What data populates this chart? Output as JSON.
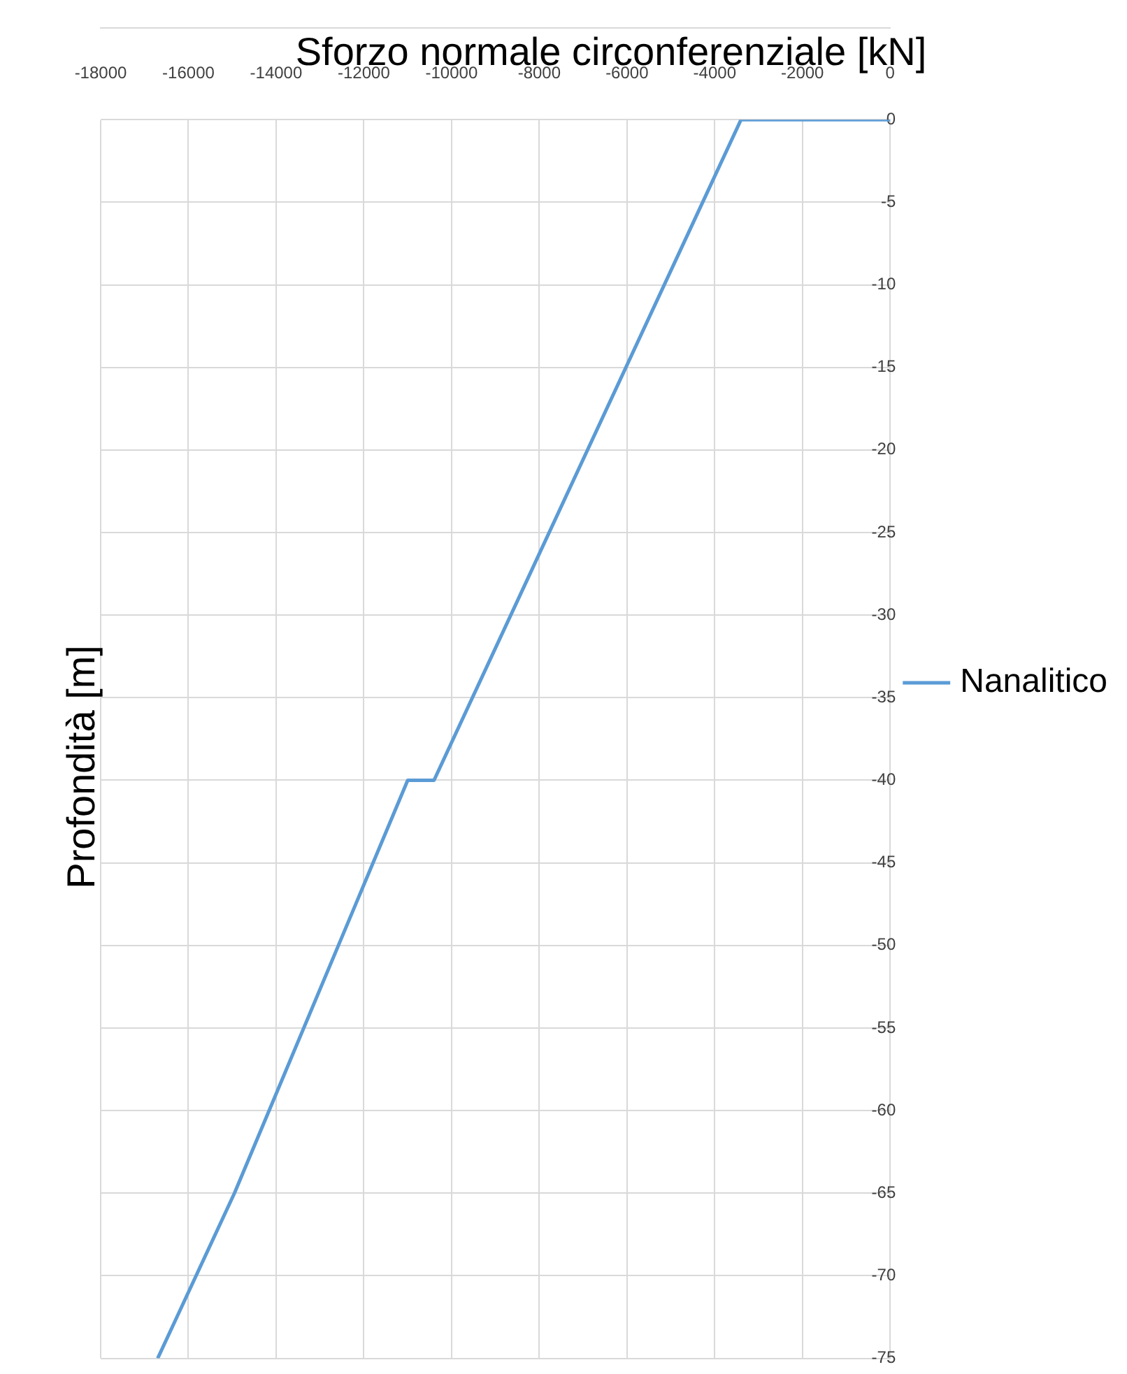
{
  "chart_data": {
    "type": "line",
    "title": "Sforzo normale circonferenziale [kN]",
    "ylabel": "Profondità [m]",
    "series": [
      {
        "name": "Nanalitico",
        "color": "#5b9bd5",
        "x": [
          0,
          -3400,
          -10400,
          -11000,
          -14950,
          -16700
        ],
        "values": [
          0,
          0,
          -40,
          -40,
          -65,
          -75
        ]
      }
    ],
    "xlim": [
      -18000,
      0
    ],
    "xticks": [
      -18000,
      -16000,
      -14000,
      -12000,
      -10000,
      -8000,
      -6000,
      -4000,
      -2000,
      0
    ],
    "ylim": [
      -75,
      0
    ],
    "yticks": [
      -75,
      -70,
      -65,
      -60,
      -55,
      -50,
      -45,
      -40,
      -35,
      -30,
      -25,
      -20,
      -15,
      -10,
      -5,
      0
    ],
    "grid": true,
    "legend": "right",
    "marker": "none",
    "line_style": "solid"
  }
}
